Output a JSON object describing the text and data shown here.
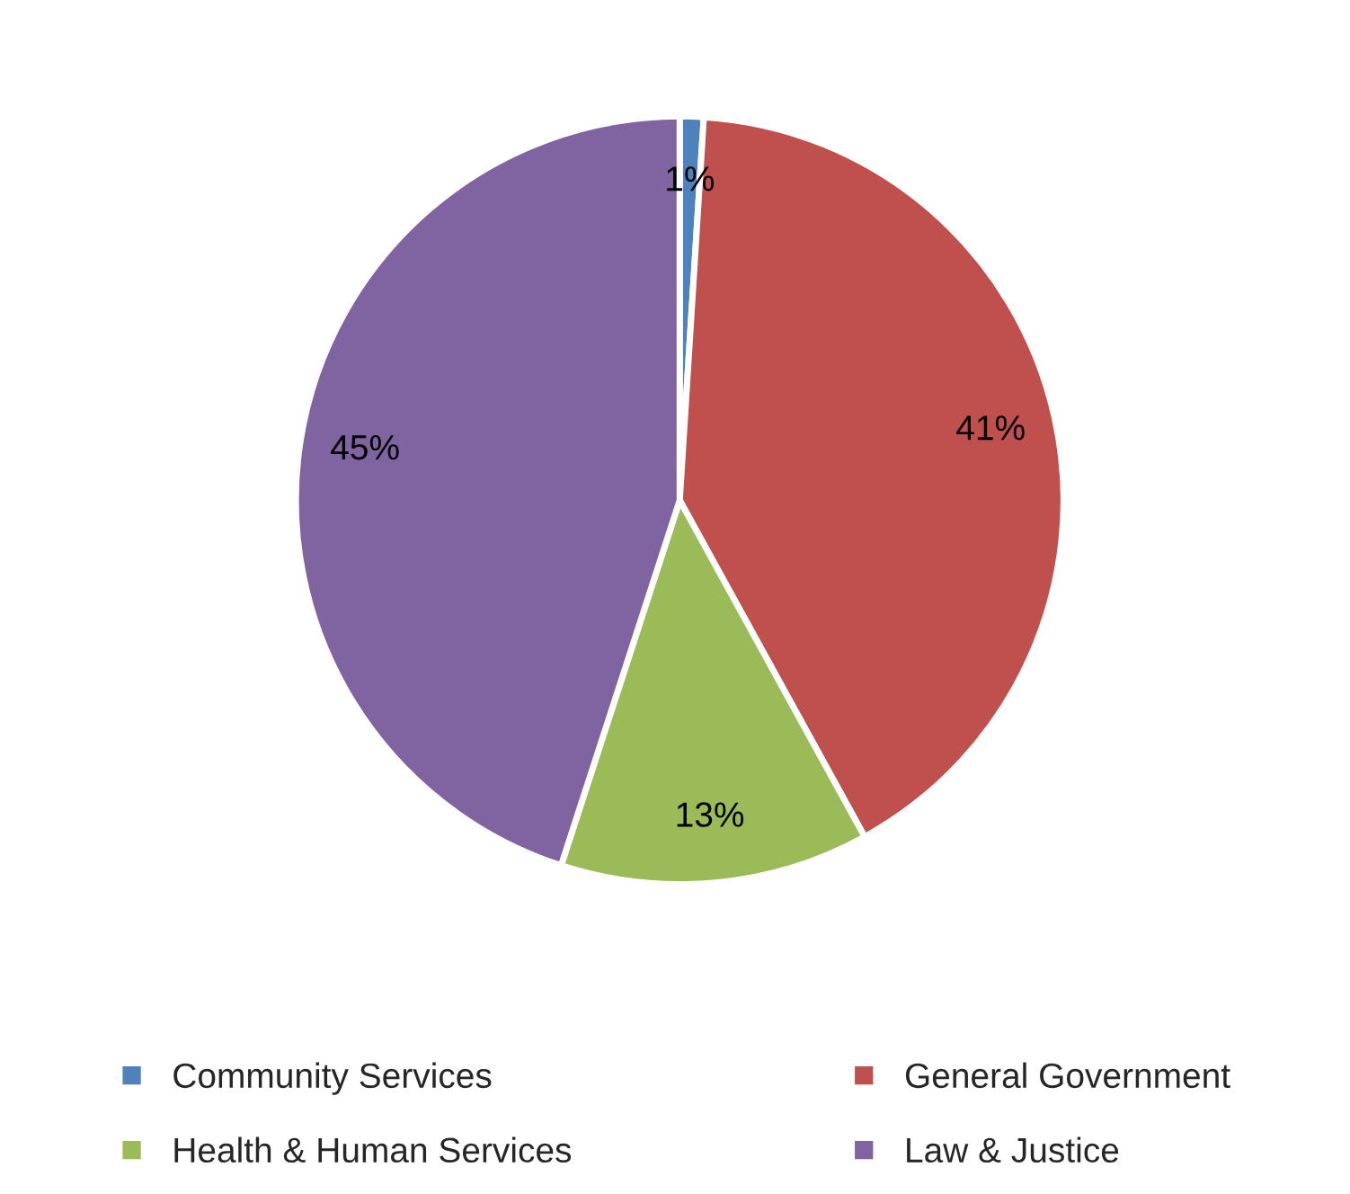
{
  "chart_data": {
    "type": "pie",
    "categories": [
      "Community Services",
      "General Government",
      "Health & Human Services",
      "Law & Justice"
    ],
    "values": [
      1,
      41,
      13,
      45
    ],
    "colors": [
      "#4f81bd",
      "#c0504d",
      "#9bbb59",
      "#8064a2"
    ],
    "value_labels": [
      "1%",
      "41%",
      "13%",
      "45%"
    ],
    "legend": "bottom"
  }
}
